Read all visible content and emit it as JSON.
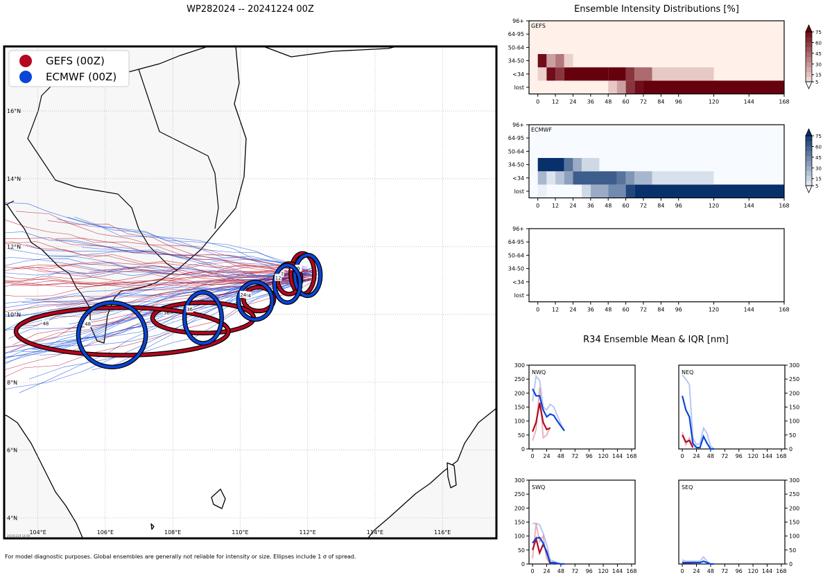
{
  "storm": {
    "title": "WP282024 -- 20241224 00Z",
    "footnote": "For model diagnostic purposes. Global ensembles are generally not reliable for intensity or size. Ellipses include 1 σ of spread.",
    "stamp": "20241224 14:00"
  },
  "colors": {
    "gefs": "#b5071f",
    "ecmwf": "#0a45d8",
    "land": "#f7f7f7",
    "coast": "#000000"
  },
  "chart_data": [
    {
      "type": "map",
      "legend": [
        {
          "name": "GEFS (00Z)",
          "color": "#b5071f"
        },
        {
          "name": "ECMWF (00Z)",
          "color": "#0a45d8"
        }
      ],
      "legend_position": "top-left",
      "lon_range": [
        103.0,
        117.6
      ],
      "lat_range": [
        3.4,
        17.9
      ],
      "lon_ticks": [
        "104°E",
        "106°E",
        "108°E",
        "110°E",
        "112°E",
        "114°E",
        "116°E"
      ],
      "lat_ticks": [
        "4°N",
        "6°N",
        "8°N",
        "10°N",
        "12°N",
        "14°N",
        "16°N"
      ],
      "grid": true,
      "ellipses": [
        {
          "model": "GEFS",
          "hour": "0",
          "lon": 111.85,
          "lat": 11.2,
          "rlon": 0.35,
          "rlat": 0.6
        },
        {
          "model": "GEFS",
          "hour": "12",
          "lon": 111.45,
          "lat": 11.05,
          "rlon": 0.35,
          "rlat": 0.45
        },
        {
          "model": "GEFS",
          "hour": "24",
          "lon": 110.55,
          "lat": 10.45,
          "rlon": 0.45,
          "rlat": 0.35
        },
        {
          "model": "GEFS",
          "hour": "36",
          "lon": 108.9,
          "lat": 9.9,
          "rlon": 1.5,
          "rlat": 0.45
        },
        {
          "model": "GEFS",
          "hour": "48",
          "lon": 106.5,
          "lat": 9.5,
          "rlon": 3.15,
          "rlat": 0.7
        },
        {
          "model": "ECMWF",
          "hour": "0",
          "lon": 112.0,
          "lat": 11.15,
          "rlon": 0.38,
          "rlat": 0.6
        },
        {
          "model": "ECMWF",
          "hour": "12",
          "lon": 111.4,
          "lat": 10.9,
          "rlon": 0.38,
          "rlat": 0.55
        },
        {
          "model": "ECMWF",
          "hour": "24",
          "lon": 110.45,
          "lat": 10.4,
          "rlon": 0.5,
          "rlat": 0.55
        },
        {
          "model": "ECMWF",
          "hour": "36",
          "lon": 108.9,
          "lat": 9.9,
          "rlon": 0.55,
          "rlat": 0.75
        },
        {
          "model": "ECMWF",
          "hour": "48",
          "lon": 106.2,
          "lat": 9.4,
          "rlon": 1.0,
          "rlat": 0.95
        }
      ]
    },
    {
      "type": "heatmap",
      "title": "Ensemble Intensity Distributions [%]",
      "x_ticks": [
        0,
        12,
        24,
        36,
        48,
        60,
        72,
        84,
        96,
        120,
        144,
        168
      ],
      "y_categories": [
        "lost",
        "<34",
        "34-50",
        "50-64",
        "64-95",
        "96+"
      ],
      "colorbar_ticks": [
        5,
        15,
        30,
        45,
        60,
        75
      ],
      "panels": [
        {
          "name": "GEFS",
          "palette": "reds",
          "rows": {
            "lost": [
              [
                48,
                54,
                15
              ],
              [
                54,
                60,
                30
              ],
              [
                60,
                66,
                70
              ],
              [
                66,
                72,
                85
              ],
              [
                72,
                168,
                90
              ]
            ],
            "<34": [
              [
                0,
                6,
                12
              ],
              [
                6,
                12,
                85
              ],
              [
                12,
                18,
                70
              ],
              [
                18,
                48,
                90
              ],
              [
                48,
                60,
                90
              ],
              [
                60,
                66,
                70
              ],
              [
                66,
                78,
                50
              ],
              [
                78,
                120,
                15
              ]
            ],
            "34-50": [
              [
                0,
                6,
                85
              ],
              [
                6,
                12,
                30
              ],
              [
                12,
                18,
                45
              ],
              [
                18,
                24,
                12
              ]
            ]
          }
        },
        {
          "name": "ECMWF",
          "palette": "blues",
          "rows": {
            "lost": [
              [
                0,
                6,
                5
              ],
              [
                30,
                36,
                15
              ],
              [
                36,
                48,
                35
              ],
              [
                48,
                60,
                50
              ],
              [
                60,
                66,
                80
              ],
              [
                66,
                168,
                90
              ]
            ],
            "<34": [
              [
                0,
                6,
                30
              ],
              [
                6,
                12,
                10
              ],
              [
                12,
                18,
                25
              ],
              [
                18,
                24,
                40
              ],
              [
                24,
                54,
                70
              ],
              [
                54,
                60,
                60
              ],
              [
                60,
                66,
                45
              ],
              [
                66,
                78,
                30
              ],
              [
                78,
                120,
                12
              ]
            ],
            "34-50": [
              [
                0,
                18,
                90
              ],
              [
                18,
                24,
                60
              ],
              [
                24,
                30,
                35
              ],
              [
                30,
                42,
                15
              ]
            ]
          }
        },
        {
          "name": "",
          "palette": "none",
          "rows": {}
        }
      ]
    },
    {
      "type": "line",
      "title": "R34 Ensemble Mean & IQR [nm]",
      "x_ticks": [
        0,
        24,
        48,
        72,
        96,
        120,
        144,
        168
      ],
      "ylim": [
        0,
        300
      ],
      "y_ticks": [
        0,
        50,
        100,
        150,
        200,
        250,
        300
      ],
      "panels": [
        {
          "name": "NWQ",
          "gefs_mean": [
            [
              0,
              62
            ],
            [
              6,
              95
            ],
            [
              12,
              165
            ],
            [
              18,
              95
            ],
            [
              24,
              70
            ],
            [
              30,
              75
            ]
          ],
          "gefs_iqr": [
            [
              0,
              30
            ],
            [
              6,
              70
            ],
            [
              12,
              220
            ],
            [
              18,
              40
            ],
            [
              24,
              50
            ],
            [
              30,
              78
            ]
          ],
          "ecmwf_mean": [
            [
              0,
              215
            ],
            [
              6,
              190
            ],
            [
              12,
              190
            ],
            [
              18,
              140
            ],
            [
              24,
              115
            ],
            [
              30,
              125
            ],
            [
              36,
              120
            ],
            [
              42,
              100
            ],
            [
              48,
              82
            ],
            [
              54,
              65
            ]
          ],
          "ecmwf_iqr": [
            [
              0,
              170
            ],
            [
              6,
              260
            ],
            [
              12,
              245
            ],
            [
              18,
              150
            ],
            [
              24,
              140
            ],
            [
              30,
              160
            ],
            [
              36,
              150
            ],
            [
              42,
              120
            ],
            [
              48,
              90
            ],
            [
              54,
              65
            ]
          ]
        },
        {
          "name": "NEQ",
          "gefs_mean": [
            [
              0,
              50
            ],
            [
              6,
              25
            ],
            [
              12,
              30
            ],
            [
              18,
              5
            ]
          ],
          "gefs_iqr": [
            [
              0,
              60
            ],
            [
              6,
              15
            ],
            [
              12,
              40
            ],
            [
              18,
              10
            ]
          ],
          "ecmwf_mean": [
            [
              0,
              190
            ],
            [
              6,
              140
            ],
            [
              12,
              115
            ],
            [
              18,
              20
            ],
            [
              24,
              5
            ],
            [
              30,
              5
            ],
            [
              36,
              45
            ],
            [
              42,
              20
            ],
            [
              48,
              0
            ],
            [
              54,
              0
            ]
          ],
          "ecmwf_iqr": [
            [
              0,
              265
            ],
            [
              6,
              250
            ],
            [
              12,
              230
            ],
            [
              18,
              40
            ],
            [
              24,
              15
            ],
            [
              30,
              20
            ],
            [
              36,
              75
            ],
            [
              42,
              55
            ],
            [
              48,
              10
            ],
            [
              54,
              0
            ]
          ]
        },
        {
          "name": "SWQ",
          "gefs_mean": [
            [
              0,
              50
            ],
            [
              6,
              90
            ],
            [
              12,
              40
            ],
            [
              18,
              70
            ],
            [
              24,
              45
            ],
            [
              30,
              0
            ]
          ],
          "gefs_iqr": [
            [
              0,
              20
            ],
            [
              6,
              145
            ],
            [
              12,
              80
            ],
            [
              18,
              100
            ],
            [
              24,
              20
            ],
            [
              30,
              0
            ]
          ],
          "ecmwf_mean": [
            [
              0,
              75
            ],
            [
              6,
              92
            ],
            [
              12,
              95
            ],
            [
              18,
              75
            ],
            [
              24,
              40
            ],
            [
              30,
              5
            ],
            [
              36,
              5
            ],
            [
              42,
              2
            ],
            [
              48,
              0
            ],
            [
              54,
              0
            ]
          ],
          "ecmwf_iqr": [
            [
              0,
              145
            ],
            [
              6,
              145
            ],
            [
              12,
              140
            ],
            [
              18,
              110
            ],
            [
              24,
              70
            ],
            [
              30,
              15
            ],
            [
              36,
              10
            ],
            [
              42,
              5
            ],
            [
              48,
              0
            ],
            [
              54,
              0
            ]
          ]
        },
        {
          "name": "SEQ",
          "gefs_mean": [
            [
              0,
              5
            ],
            [
              6,
              3
            ],
            [
              12,
              5
            ],
            [
              18,
              0
            ]
          ],
          "gefs_iqr": [
            [
              0,
              10
            ],
            [
              6,
              0
            ],
            [
              12,
              5
            ],
            [
              18,
              0
            ]
          ],
          "ecmwf_mean": [
            [
              0,
              5
            ],
            [
              6,
              5
            ],
            [
              12,
              5
            ],
            [
              18,
              5
            ],
            [
              24,
              5
            ],
            [
              30,
              5
            ],
            [
              36,
              10
            ],
            [
              42,
              5
            ],
            [
              48,
              0
            ],
            [
              54,
              0
            ]
          ],
          "ecmwf_iqr": [
            [
              0,
              15
            ],
            [
              6,
              10
            ],
            [
              12,
              10
            ],
            [
              18,
              10
            ],
            [
              24,
              10
            ],
            [
              30,
              10
            ],
            [
              36,
              25
            ],
            [
              42,
              10
            ],
            [
              48,
              0
            ],
            [
              54,
              0
            ]
          ]
        }
      ]
    }
  ]
}
